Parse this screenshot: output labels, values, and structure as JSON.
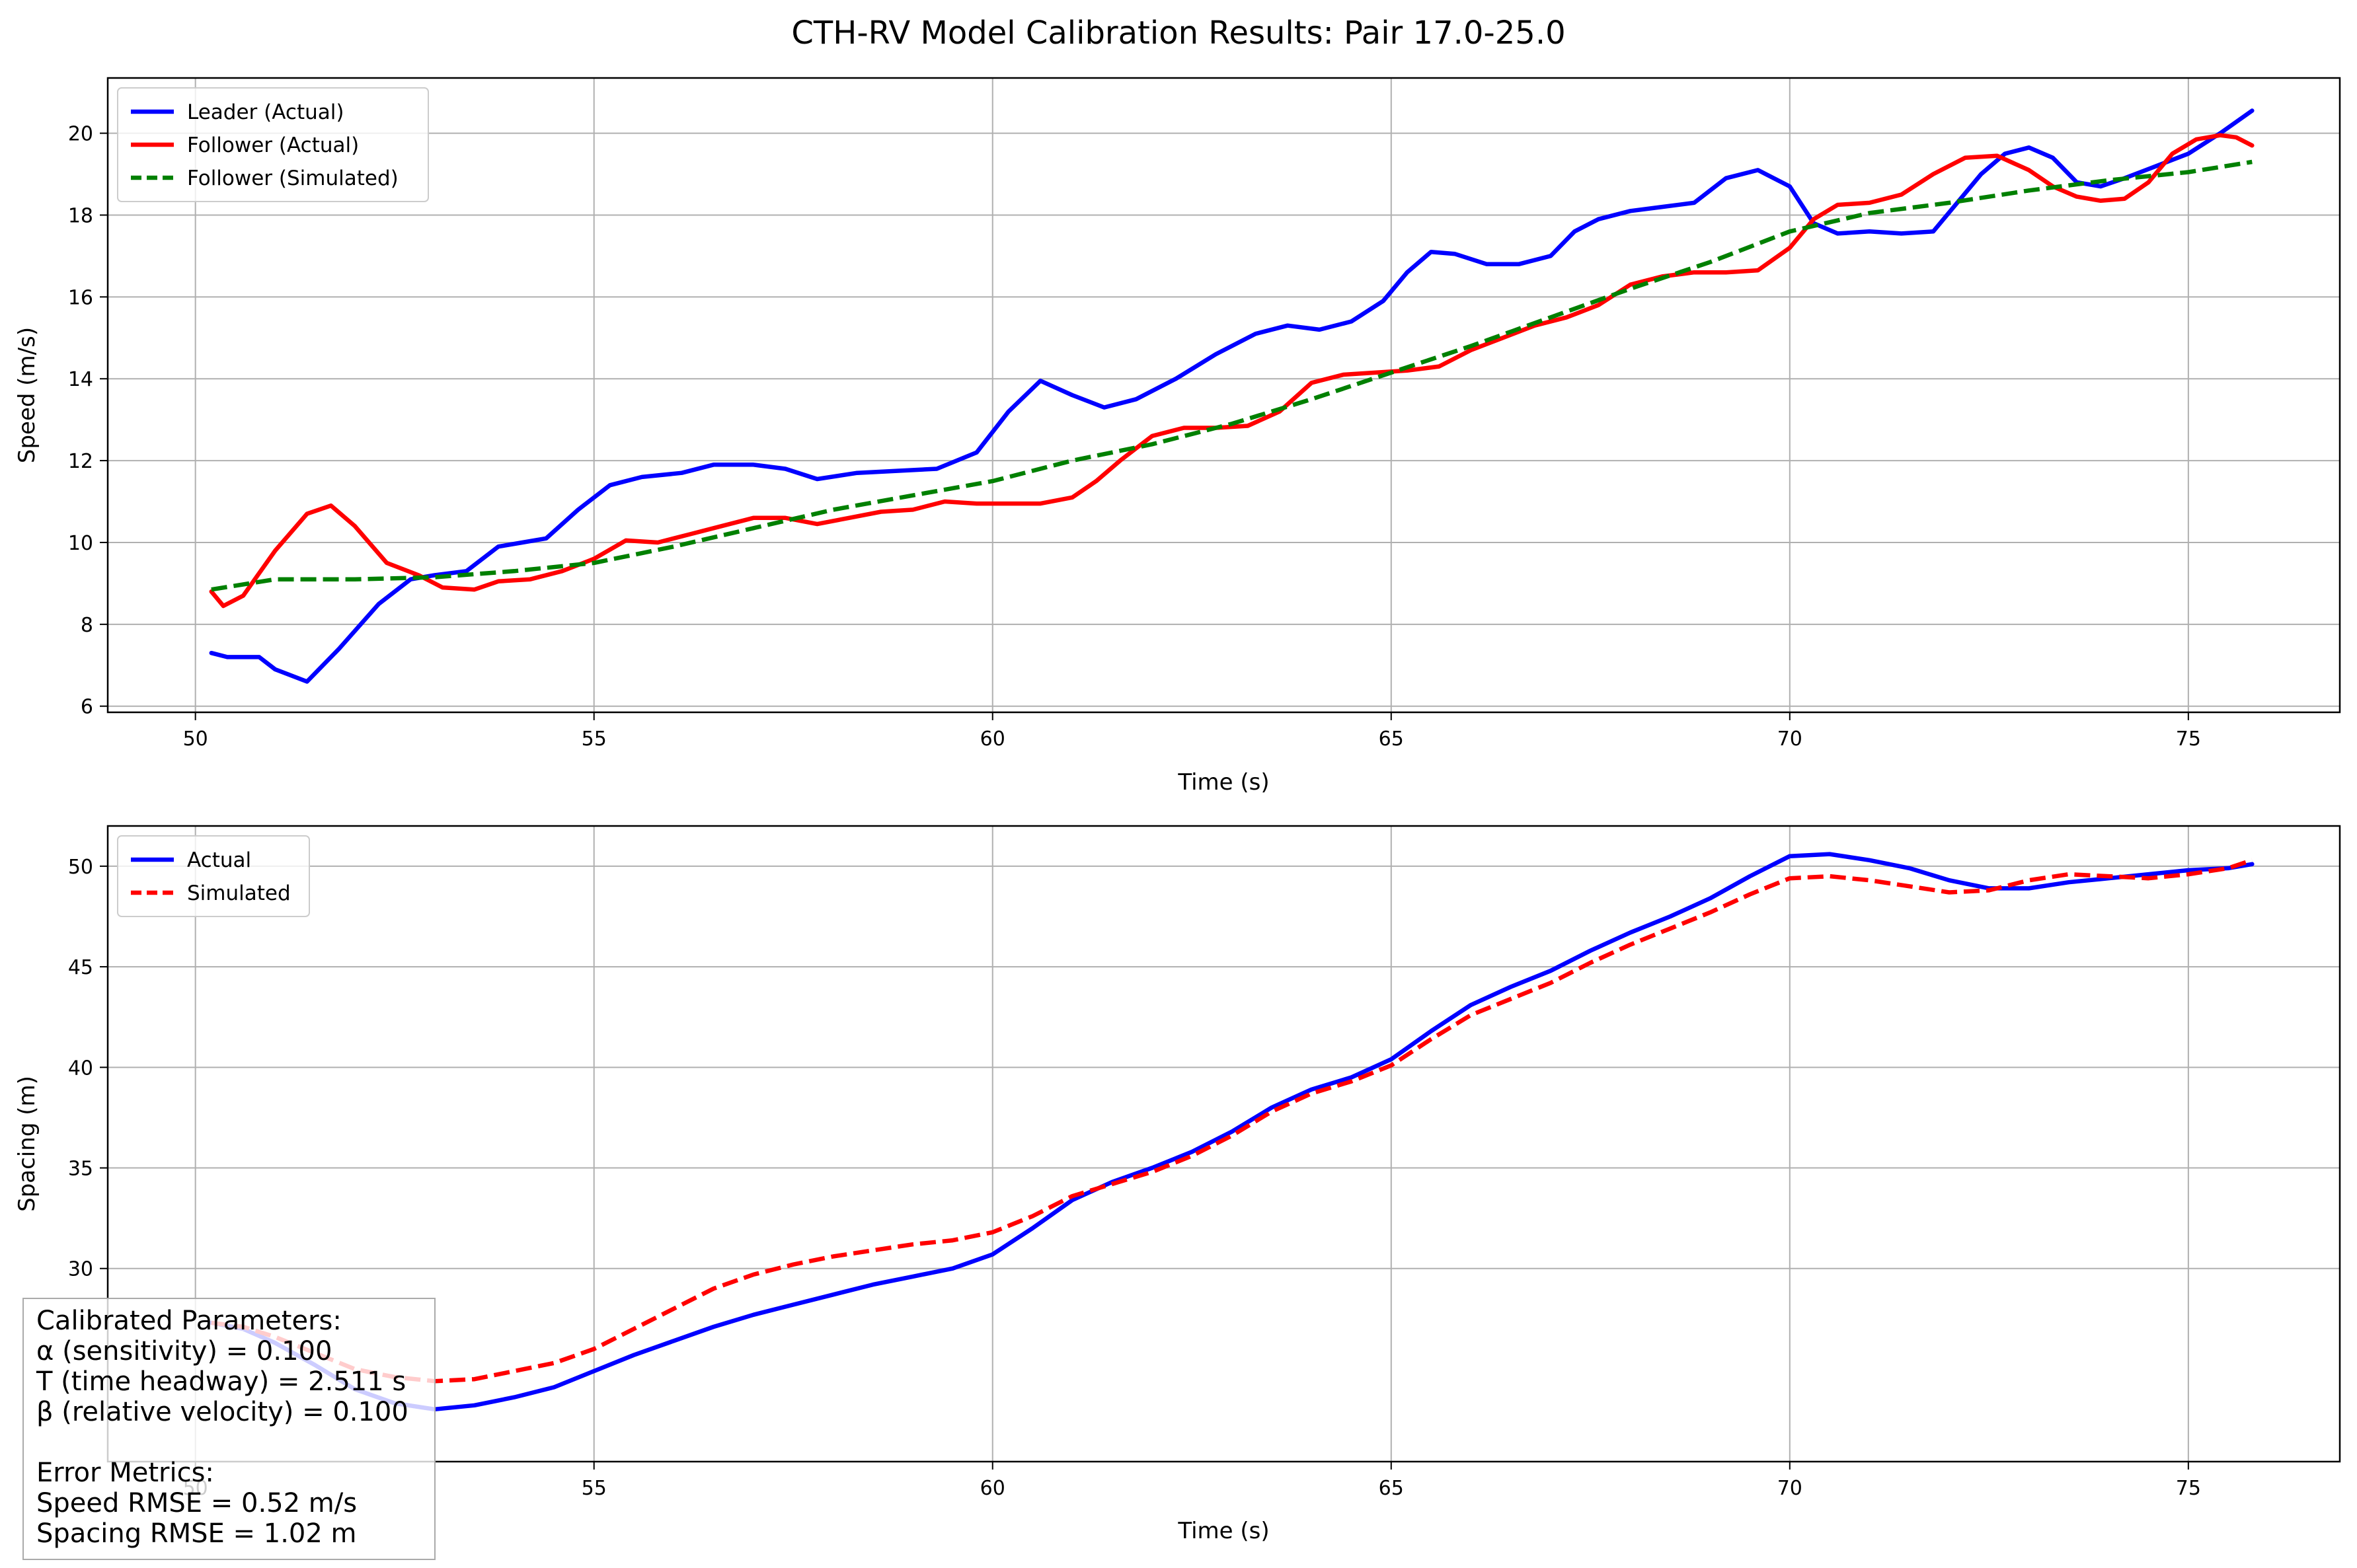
{
  "figure": {
    "title": "CTH-RV Model Calibration Results: Pair 17.0-25.0"
  },
  "chart_data": [
    {
      "type": "line",
      "xlabel": "Time (s)",
      "ylabel": "Speed (m/s)",
      "xlim": [
        48.9,
        76.9
      ],
      "ylim": [
        5.85,
        21.35
      ],
      "xticks": [
        50,
        55,
        60,
        65,
        70,
        75
      ],
      "yticks": [
        6,
        8,
        10,
        12,
        14,
        16,
        18,
        20
      ],
      "grid": true,
      "legend": "upper left",
      "series": [
        {
          "name": "Leader (Actual)",
          "color": "#0000ff",
          "style": "solid",
          "x": [
            50.2,
            50.4,
            50.8,
            51.0,
            51.4,
            51.8,
            52.3,
            52.7,
            53.0,
            53.4,
            53.8,
            54.1,
            54.4,
            54.8,
            55.2,
            55.6,
            56.1,
            56.5,
            57.0,
            57.4,
            57.8,
            58.3,
            58.8,
            59.3,
            59.8,
            60.2,
            60.6,
            61.0,
            61.4,
            61.8,
            62.3,
            62.8,
            63.3,
            63.7,
            64.1,
            64.5,
            64.9,
            65.2,
            65.5,
            65.8,
            66.2,
            66.6,
            67.0,
            67.3,
            67.6,
            68.0,
            68.4,
            68.8,
            69.2,
            69.6,
            70.0,
            70.3,
            70.6,
            71.0,
            71.4,
            71.8,
            72.1,
            72.4,
            72.7,
            73.0,
            73.3,
            73.6,
            73.9,
            74.2,
            74.6,
            75.0,
            75.4,
            75.8
          ],
          "y": [
            7.3,
            7.2,
            7.2,
            6.9,
            6.6,
            7.4,
            8.5,
            9.1,
            9.2,
            9.3,
            9.9,
            10.0,
            10.1,
            10.8,
            11.4,
            11.6,
            11.7,
            11.9,
            11.9,
            11.8,
            11.55,
            11.7,
            11.75,
            11.8,
            12.2,
            13.2,
            13.95,
            13.6,
            13.3,
            13.5,
            14.0,
            14.6,
            15.1,
            15.3,
            15.2,
            15.4,
            15.9,
            16.6,
            17.1,
            17.05,
            16.8,
            16.8,
            17.0,
            17.6,
            17.9,
            18.1,
            18.2,
            18.3,
            18.9,
            19.1,
            18.7,
            17.8,
            17.55,
            17.6,
            17.55,
            17.6,
            18.3,
            19.0,
            19.5,
            19.65,
            19.4,
            18.8,
            18.7,
            18.9,
            19.2,
            19.5,
            20.0,
            20.55
          ]
        },
        {
          "name": "Follower (Actual)",
          "color": "#ff0000",
          "style": "solid",
          "x": [
            50.2,
            50.35,
            50.6,
            51.0,
            51.4,
            51.7,
            52.0,
            52.4,
            52.8,
            53.1,
            53.5,
            53.8,
            54.2,
            54.6,
            55.0,
            55.4,
            55.8,
            56.2,
            56.6,
            57.0,
            57.4,
            57.8,
            58.2,
            58.6,
            59.0,
            59.4,
            59.8,
            60.2,
            60.6,
            61.0,
            61.3,
            61.6,
            62.0,
            62.4,
            62.8,
            63.2,
            63.6,
            64.0,
            64.4,
            64.8,
            65.2,
            65.6,
            66.0,
            66.4,
            66.8,
            67.2,
            67.6,
            68.0,
            68.4,
            68.8,
            69.2,
            69.6,
            70.0,
            70.3,
            70.6,
            71.0,
            71.4,
            71.8,
            72.2,
            72.6,
            73.0,
            73.3,
            73.6,
            73.9,
            74.2,
            74.5,
            74.8,
            75.1,
            75.4,
            75.6,
            75.8
          ],
          "y": [
            8.8,
            8.45,
            8.7,
            9.8,
            10.7,
            10.9,
            10.4,
            9.5,
            9.2,
            8.9,
            8.85,
            9.05,
            9.1,
            9.3,
            9.6,
            10.05,
            10.0,
            10.2,
            10.4,
            10.6,
            10.6,
            10.45,
            10.6,
            10.75,
            10.8,
            11.0,
            10.95,
            10.95,
            10.95,
            11.1,
            11.5,
            12.0,
            12.6,
            12.8,
            12.8,
            12.85,
            13.2,
            13.9,
            14.1,
            14.15,
            14.2,
            14.3,
            14.7,
            15.0,
            15.3,
            15.5,
            15.8,
            16.3,
            16.5,
            16.6,
            16.6,
            16.65,
            17.2,
            17.9,
            18.25,
            18.3,
            18.5,
            19.0,
            19.4,
            19.45,
            19.1,
            18.7,
            18.45,
            18.35,
            18.4,
            18.8,
            19.5,
            19.85,
            19.95,
            19.9,
            19.7
          ]
        },
        {
          "name": "Follower (Simulated)",
          "color": "#008000",
          "style": "dashed",
          "x": [
            50.2,
            51.0,
            52.0,
            53.0,
            54.0,
            55.0,
            56.0,
            57.0,
            58.0,
            59.0,
            60.0,
            61.0,
            62.0,
            63.0,
            64.0,
            65.0,
            66.0,
            67.0,
            68.0,
            69.0,
            70.0,
            71.0,
            72.0,
            73.0,
            74.0,
            75.0,
            75.8
          ],
          "y": [
            8.85,
            9.1,
            9.1,
            9.15,
            9.3,
            9.5,
            9.9,
            10.35,
            10.8,
            11.15,
            11.5,
            12.0,
            12.4,
            12.9,
            13.5,
            14.15,
            14.8,
            15.5,
            16.2,
            16.85,
            17.6,
            18.05,
            18.3,
            18.6,
            18.85,
            19.05,
            19.3
          ]
        }
      ]
    },
    {
      "type": "line",
      "xlabel": "Time (s)",
      "ylabel": "Spacing (m)",
      "xlim": [
        48.9,
        76.9
      ],
      "ylim": [
        20.4,
        52.0
      ],
      "xticks": [
        50,
        55,
        60,
        65,
        70,
        75
      ],
      "yticks": [
        30,
        35,
        40,
        45,
        50
      ],
      "grid": true,
      "legend": "upper left",
      "series": [
        {
          "name": "Actual",
          "color": "#0000ff",
          "style": "solid",
          "x": [
            50.2,
            50.6,
            51.0,
            51.5,
            52.0,
            52.5,
            53.0,
            53.5,
            54.0,
            54.5,
            55.0,
            55.5,
            56.0,
            56.5,
            57.0,
            57.5,
            58.0,
            58.5,
            59.0,
            59.5,
            60.0,
            60.5,
            61.0,
            61.5,
            62.0,
            62.5,
            63.0,
            63.5,
            64.0,
            64.5,
            65.0,
            65.5,
            66.0,
            66.5,
            67.0,
            67.5,
            68.0,
            68.5,
            69.0,
            69.5,
            70.0,
            70.5,
            71.0,
            71.5,
            72.0,
            72.5,
            73.0,
            73.5,
            74.0,
            74.5,
            75.0,
            75.5,
            75.8
          ],
          "y": [
            27.3,
            27.0,
            26.3,
            25.2,
            24.0,
            23.3,
            23.0,
            23.2,
            23.6,
            24.1,
            24.9,
            25.7,
            26.4,
            27.1,
            27.7,
            28.2,
            28.7,
            29.2,
            29.6,
            30.0,
            30.7,
            32.0,
            33.4,
            34.3,
            35.0,
            35.8,
            36.8,
            38.0,
            38.9,
            39.5,
            40.4,
            41.8,
            43.1,
            44.0,
            44.8,
            45.8,
            46.7,
            47.5,
            48.4,
            49.5,
            50.5,
            50.6,
            50.3,
            49.9,
            49.3,
            48.9,
            48.9,
            49.2,
            49.4,
            49.6,
            49.8,
            49.9,
            50.1
          ]
        },
        {
          "name": "Simulated",
          "color": "#ff0000",
          "style": "dashed",
          "x": [
            50.2,
            50.6,
            51.0,
            51.5,
            52.0,
            52.5,
            53.0,
            53.5,
            54.0,
            54.5,
            55.0,
            55.5,
            56.0,
            56.5,
            57.0,
            57.5,
            58.0,
            58.5,
            59.0,
            59.5,
            60.0,
            60.5,
            61.0,
            61.5,
            62.0,
            62.5,
            63.0,
            63.5,
            64.0,
            64.5,
            65.0,
            65.5,
            66.0,
            66.5,
            67.0,
            67.5,
            68.0,
            68.5,
            69.0,
            69.5,
            70.0,
            70.5,
            71.0,
            71.5,
            72.0,
            72.5,
            73.0,
            73.5,
            74.0,
            74.5,
            75.0,
            75.5,
            75.8
          ],
          "y": [
            27.3,
            27.1,
            26.6,
            25.8,
            25.0,
            24.6,
            24.4,
            24.5,
            24.9,
            25.3,
            26.0,
            27.0,
            28.0,
            29.0,
            29.7,
            30.2,
            30.6,
            30.9,
            31.2,
            31.4,
            31.8,
            32.6,
            33.6,
            34.2,
            34.8,
            35.6,
            36.6,
            37.8,
            38.7,
            39.3,
            40.1,
            41.4,
            42.6,
            43.4,
            44.2,
            45.2,
            46.1,
            46.9,
            47.7,
            48.6,
            49.4,
            49.5,
            49.3,
            49.0,
            48.7,
            48.8,
            49.3,
            49.6,
            49.5,
            49.4,
            49.6,
            49.9,
            50.3
          ]
        }
      ]
    }
  ],
  "annotation": {
    "lines": [
      "Calibrated Parameters:",
      "α (sensitivity) = 0.100",
      "T (time headway) = 2.511 s",
      "β (relative velocity) = 0.100",
      "",
      "Error Metrics:",
      "Speed RMSE = 0.52 m/s",
      "Spacing RMSE = 1.02 m"
    ]
  }
}
